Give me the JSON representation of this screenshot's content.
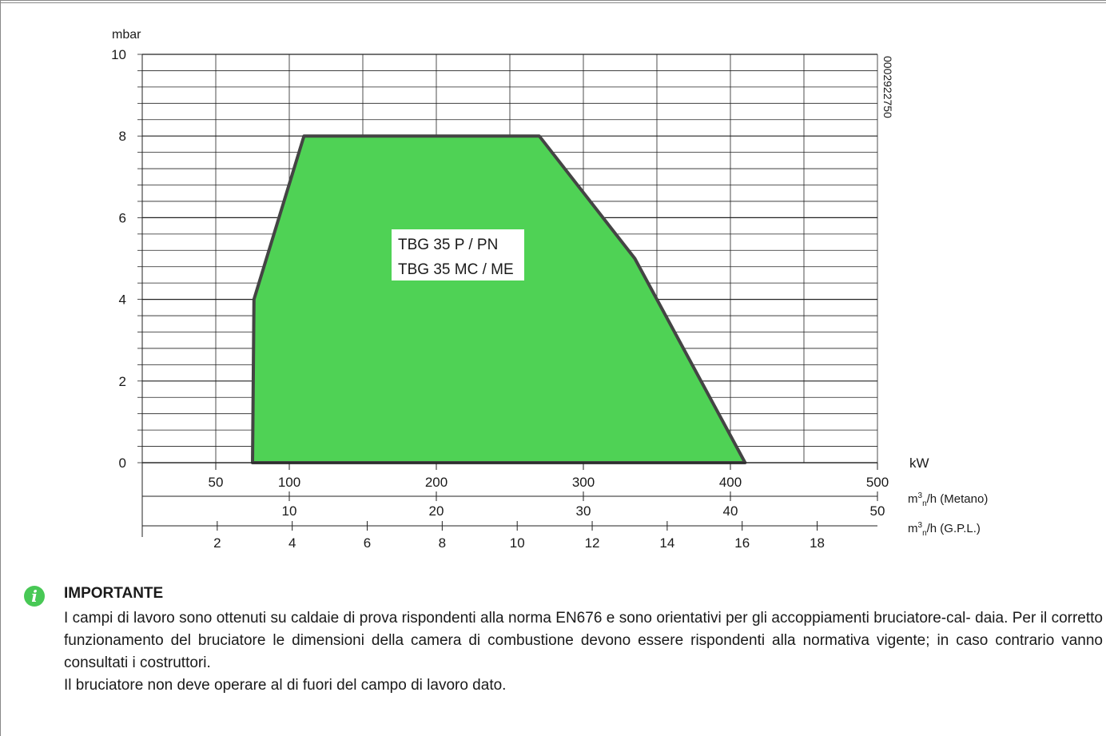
{
  "notice": {
    "icon": "info-icon",
    "title": "IMPORTANTE",
    "paragraphs": [
      "I campi di lavoro sono ottenuti su caldaie di prova rispondenti alla norma EN676 e sono orientativi per gli accoppiamenti bruciatore-cal- daia. Per il corretto funzionamento del bruciatore le dimensioni della camera di combustione devono essere rispondenti alla normativa vigente; in caso contrario vanno consultati i costruttori.",
      "Il bruciatore non deve operare al di fuori del campo di lavoro dato."
    ]
  },
  "chart_data": {
    "type": "area",
    "code": "0002922750",
    "series": [
      {
        "name": "TBG 35 P / PN",
        "name2": "TBG 35 MC / ME",
        "fill": "#4fd255",
        "stroke": "#444444",
        "points": [
          [
            75,
            0
          ],
          [
            76,
            4
          ],
          [
            110,
            8
          ],
          [
            270,
            8
          ],
          [
            335,
            5
          ],
          [
            410,
            0
          ]
        ]
      }
    ],
    "ylabel": "mbar",
    "ylim": [
      0,
      10
    ],
    "yticks": [
      "0",
      "2",
      "4",
      "6",
      "8",
      "10"
    ],
    "xlabel": "kW",
    "xlim": [
      0,
      500
    ],
    "xticks": [
      {
        "value": 50,
        "label": "50"
      },
      {
        "value": 100,
        "label": "100"
      },
      {
        "value": 200,
        "label": "200"
      },
      {
        "value": 300,
        "label": "300"
      },
      {
        "value": 400,
        "label": "400"
      },
      {
        "value": 500,
        "label": "500"
      }
    ],
    "secondary_axes": [
      {
        "label": "m³n/h (Metano)",
        "unit_main": "m",
        "unit_sup": "3",
        "unit_sub": "n",
        "unit_rest": "/h (Metano)",
        "kw_per_unit": 10.0,
        "ticks": [
          "10",
          "20",
          "30",
          "40",
          "50"
        ],
        "values": [
          10,
          20,
          30,
          40,
          50
        ]
      },
      {
        "label": "m³n/h (G.P.L.)",
        "unit_main": "m",
        "unit_sup": "3",
        "unit_sub": "n",
        "unit_rest": "/h (G.P.L.)",
        "kw_per_unit": 25.5,
        "ticks": [
          "2",
          "4",
          "6",
          "8",
          "10",
          "12",
          "14",
          "16",
          "18"
        ],
        "values": [
          2,
          4,
          6,
          8,
          10,
          12,
          14,
          16,
          18
        ]
      }
    ],
    "grid": true
  }
}
